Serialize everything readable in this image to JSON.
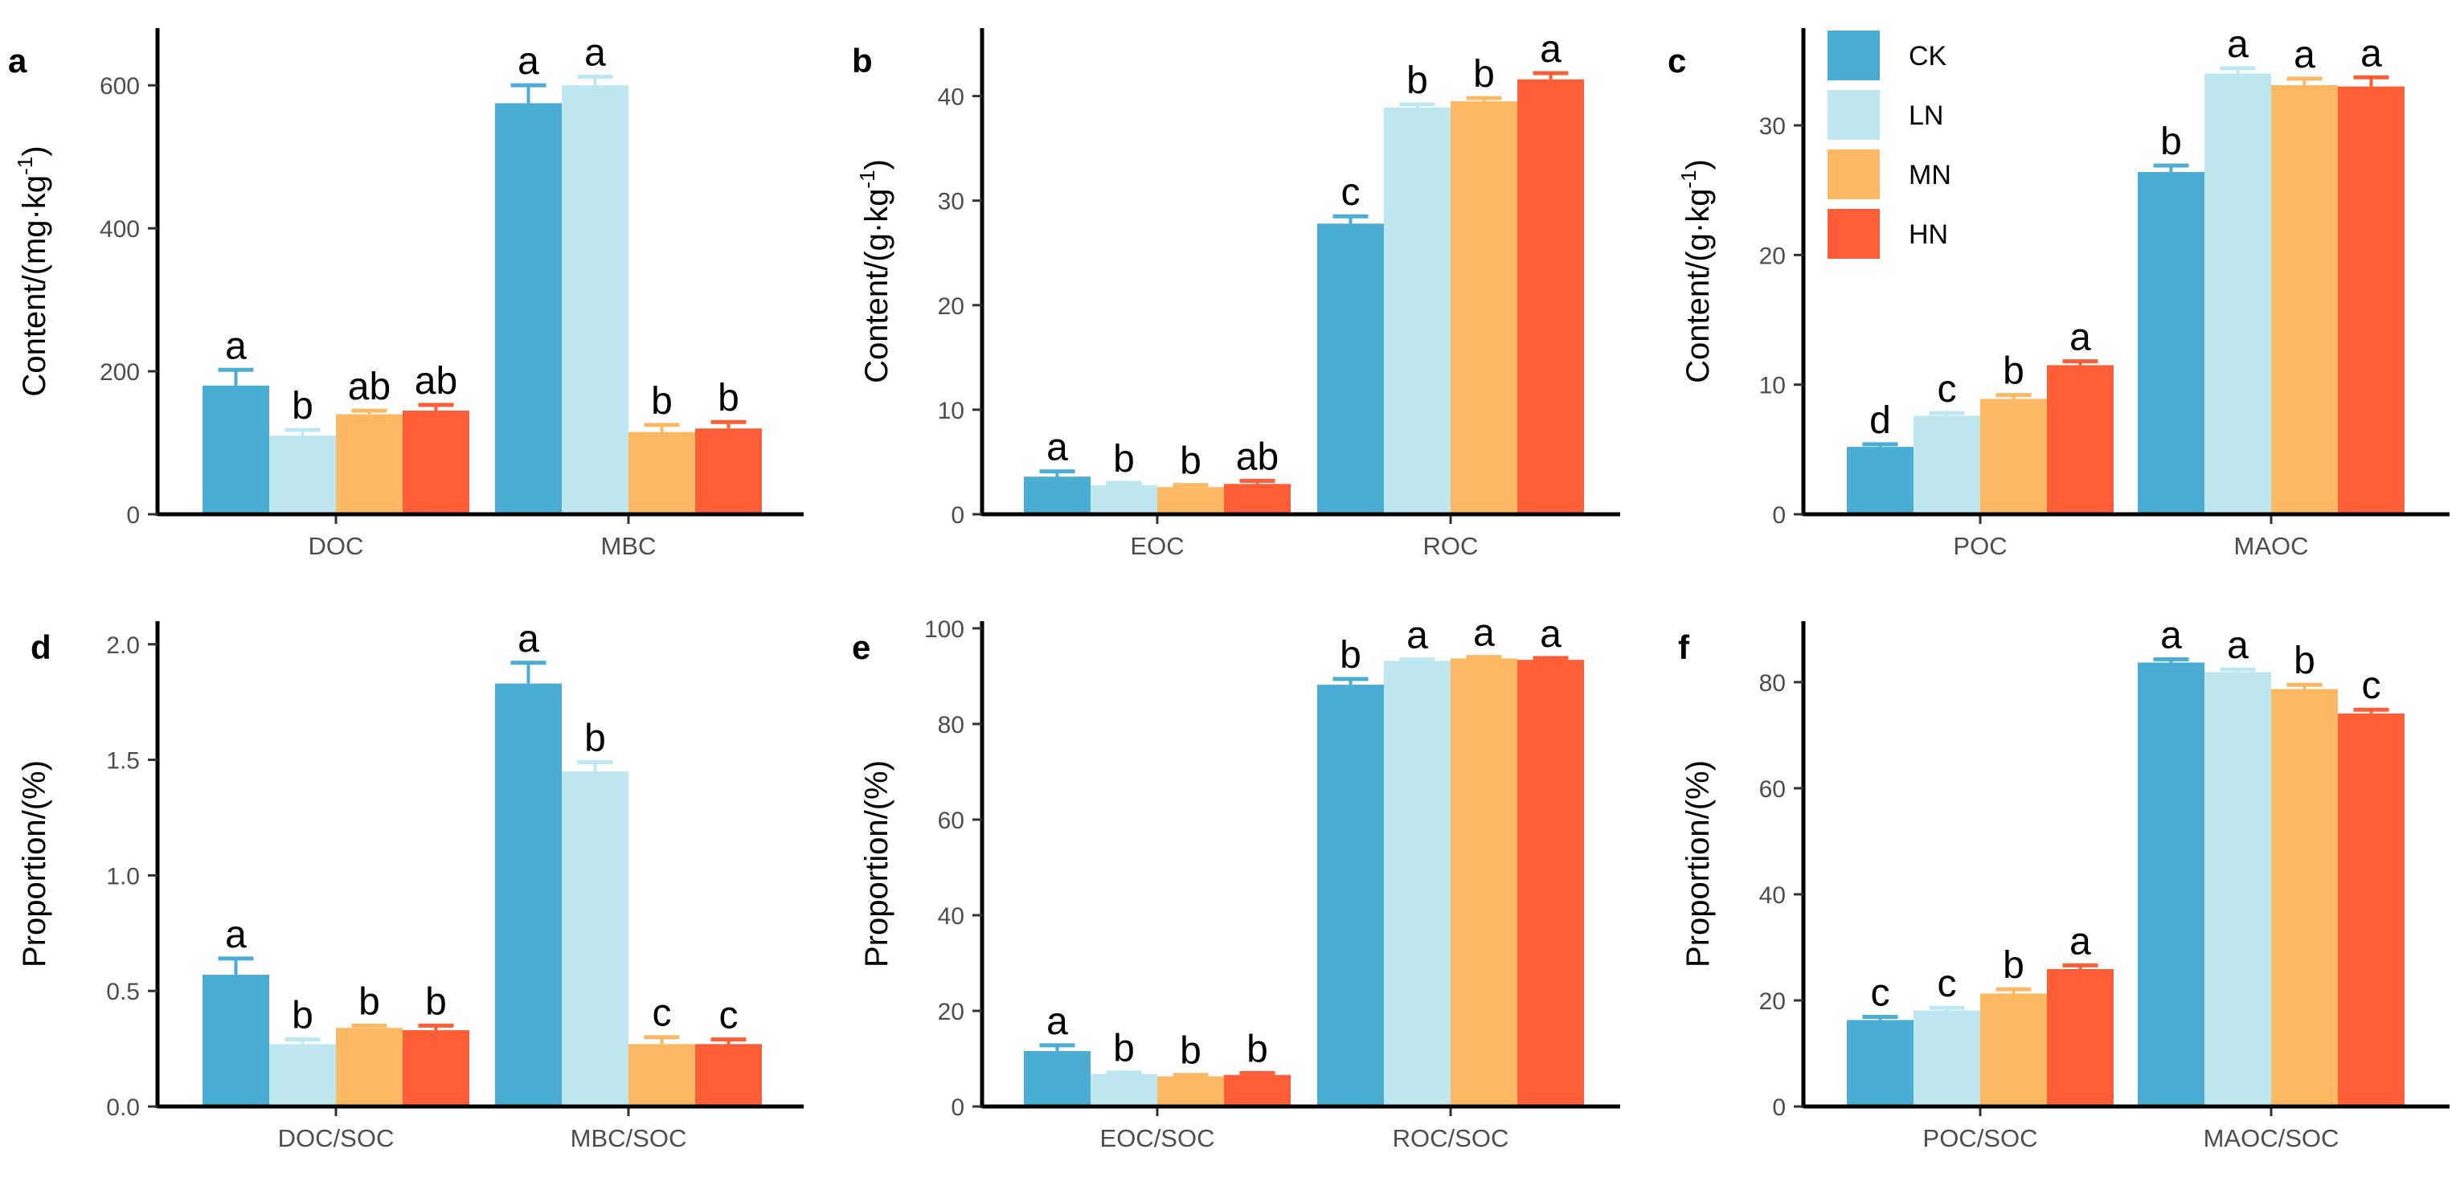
{
  "legend": [
    {
      "name": "CK",
      "color": "#4badd3"
    },
    {
      "name": "LN",
      "color": "#bee7f0"
    },
    {
      "name": "MN",
      "color": "#fdb863"
    },
    {
      "name": "HN",
      "color": "#fd5e37"
    }
  ],
  "chart_data": [
    {
      "type": "bar",
      "panel": "a",
      "ylabel": "Content/(mg·kg",
      "ylabel_sup": "-1",
      "ylabel_end": ")",
      "ylim": [
        0,
        680
      ],
      "yticks": [
        0,
        200,
        400,
        600
      ],
      "categories": [
        "DOC",
        "MBC"
      ],
      "series": [
        {
          "name": "CK",
          "values": [
            180,
            575
          ],
          "errors": [
            22,
            25
          ],
          "letters": [
            "a",
            "a"
          ]
        },
        {
          "name": "LN",
          "values": [
            110,
            600
          ],
          "errors": [
            8,
            12
          ],
          "letters": [
            "b",
            "a"
          ]
        },
        {
          "name": "MN",
          "values": [
            140,
            115
          ],
          "errors": [
            5,
            10
          ],
          "letters": [
            "ab",
            "b"
          ]
        },
        {
          "name": "HN",
          "values": [
            145,
            120
          ],
          "errors": [
            8,
            9
          ],
          "letters": [
            "ab",
            "b"
          ]
        }
      ]
    },
    {
      "type": "bar",
      "panel": "b",
      "ylabel": "Content/(g·kg",
      "ylabel_sup": "-1",
      "ylabel_end": ")",
      "ylim": [
        0,
        46.5
      ],
      "yticks": [
        0,
        10,
        20,
        30,
        40
      ],
      "categories": [
        "EOC",
        "ROC"
      ],
      "series": [
        {
          "name": "CK",
          "values": [
            3.6,
            27.8
          ],
          "errors": [
            0.5,
            0.7
          ],
          "letters": [
            "a",
            "c"
          ]
        },
        {
          "name": "LN",
          "values": [
            2.8,
            38.9
          ],
          "errors": [
            0.2,
            0.3
          ],
          "letters": [
            "b",
            "b"
          ]
        },
        {
          "name": "MN",
          "values": [
            2.6,
            39.5
          ],
          "errors": [
            0.2,
            0.3
          ],
          "letters": [
            "b",
            "b"
          ]
        },
        {
          "name": "HN",
          "values": [
            2.9,
            41.6
          ],
          "errors": [
            0.3,
            0.6
          ],
          "letters": [
            "ab",
            "a"
          ]
        }
      ]
    },
    {
      "type": "bar",
      "panel": "c",
      "ylabel": "Content/(g·kg",
      "ylabel_sup": "-1",
      "ylabel_end": ")",
      "ylim": [
        0,
        37.5
      ],
      "yticks": [
        0,
        10,
        20,
        30
      ],
      "categories": [
        "POC",
        "MAOC"
      ],
      "series": [
        {
          "name": "CK",
          "values": [
            5.2,
            26.4
          ],
          "errors": [
            0.2,
            0.5
          ],
          "letters": [
            "d",
            "b"
          ]
        },
        {
          "name": "LN",
          "values": [
            7.6,
            34.0
          ],
          "errors": [
            0.2,
            0.4
          ],
          "letters": [
            "c",
            "a"
          ]
        },
        {
          "name": "MN",
          "values": [
            8.9,
            33.1
          ],
          "errors": [
            0.3,
            0.5
          ],
          "letters": [
            "b",
            "a"
          ]
        },
        {
          "name": "HN",
          "values": [
            11.5,
            33.0
          ],
          "errors": [
            0.3,
            0.7
          ],
          "letters": [
            "a",
            "a"
          ]
        }
      ]
    },
    {
      "type": "bar",
      "panel": "d",
      "ylabel": "Proportion/(%)",
      "ylim": [
        0,
        2.1
      ],
      "yticks": [
        0,
        0.5,
        1.0,
        1.5,
        2.0
      ],
      "tick_labels": [
        "0.0",
        "0.5",
        "1.0",
        "1.5",
        "2.0"
      ],
      "categories": [
        "DOC/SOC",
        "MBC/SOC"
      ],
      "series": [
        {
          "name": "CK",
          "values": [
            0.57,
            1.83
          ],
          "errors": [
            0.07,
            0.09
          ],
          "letters": [
            "a",
            "a"
          ]
        },
        {
          "name": "LN",
          "values": [
            0.27,
            1.45
          ],
          "errors": [
            0.02,
            0.04
          ],
          "letters": [
            "b",
            "b"
          ]
        },
        {
          "name": "MN",
          "values": [
            0.34,
            0.27
          ],
          "errors": [
            0.01,
            0.03
          ],
          "letters": [
            "b",
            "c"
          ]
        },
        {
          "name": "HN",
          "values": [
            0.33,
            0.27
          ],
          "errors": [
            0.02,
            0.02
          ],
          "letters": [
            "b",
            "c"
          ]
        }
      ]
    },
    {
      "type": "bar",
      "panel": "e",
      "ylabel": "Proportion/(%)",
      "ylim": [
        0,
        101.5
      ],
      "yticks": [
        0,
        20,
        40,
        60,
        80,
        100
      ],
      "categories": [
        "EOC/SOC",
        "ROC/SOC"
      ],
      "series": [
        {
          "name": "CK",
          "values": [
            11.6,
            88.2
          ],
          "errors": [
            1.2,
            1.2
          ],
          "letters": [
            "a",
            "b"
          ]
        },
        {
          "name": "LN",
          "values": [
            6.8,
            93.2
          ],
          "errors": [
            0.3,
            0.3
          ],
          "letters": [
            "b",
            "a"
          ]
        },
        {
          "name": "MN",
          "values": [
            6.3,
            93.7
          ],
          "errors": [
            0.3,
            0.3
          ],
          "letters": [
            "b",
            "a"
          ]
        },
        {
          "name": "HN",
          "values": [
            6.6,
            93.4
          ],
          "errors": [
            0.4,
            0.4
          ],
          "letters": [
            "b",
            "a"
          ]
        }
      ]
    },
    {
      "type": "bar",
      "panel": "f",
      "ylabel": "Proportion/(%)",
      "ylim": [
        0,
        91.5
      ],
      "yticks": [
        0,
        20,
        40,
        60,
        80
      ],
      "categories": [
        "POC/SOC",
        "MAOC/SOC"
      ],
      "series": [
        {
          "name": "CK",
          "values": [
            16.3,
            83.7
          ],
          "errors": [
            0.6,
            0.6
          ],
          "letters": [
            "c",
            "a"
          ]
        },
        {
          "name": "LN",
          "values": [
            18.1,
            81.9
          ],
          "errors": [
            0.5,
            0.5
          ],
          "letters": [
            "c",
            "a"
          ]
        },
        {
          "name": "MN",
          "values": [
            21.3,
            78.7
          ],
          "errors": [
            0.8,
            0.8
          ],
          "letters": [
            "b",
            "b"
          ]
        },
        {
          "name": "HN",
          "values": [
            25.9,
            74.1
          ],
          "errors": [
            0.7,
            0.7
          ],
          "letters": [
            "a",
            "c"
          ]
        }
      ]
    }
  ]
}
